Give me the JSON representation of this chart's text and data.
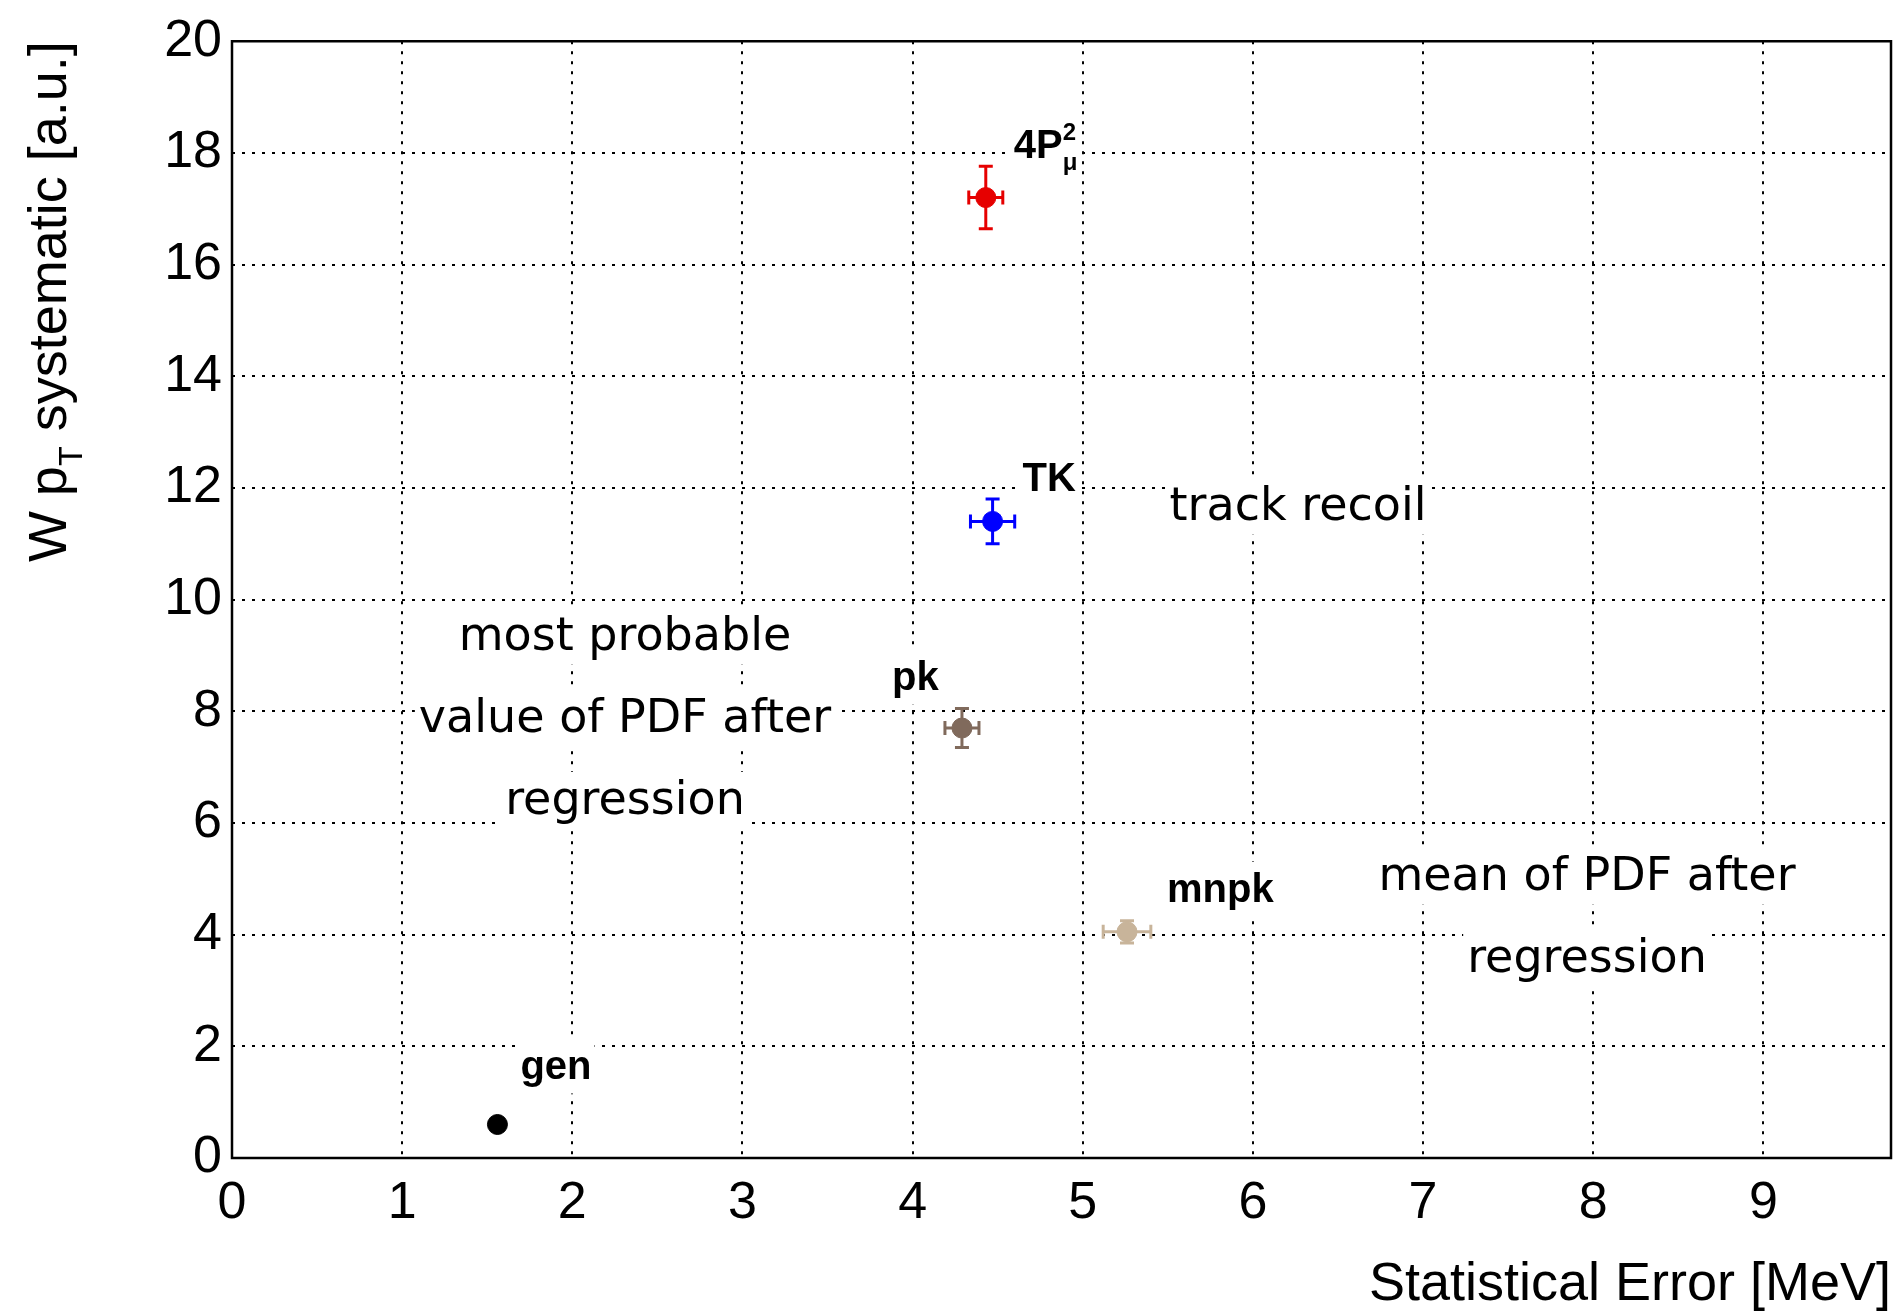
{
  "chart_data": {
    "type": "scatter",
    "xlabel": "Statistical Error [MeV]",
    "ylabel": "W p$_{T}$ systematic [a.u.]",
    "xlim": [
      0,
      9.75
    ],
    "xticks": [
      0,
      1,
      2,
      3,
      4,
      5,
      6,
      7,
      8,
      9
    ],
    "ylim": [
      0,
      20
    ],
    "yticks": [
      0,
      2,
      4,
      6,
      8,
      10,
      12,
      14,
      16,
      18,
      20
    ],
    "grid": true,
    "marker": "circle",
    "annotations": [
      "track recoil",
      "most probable value of PDF after regression",
      "mean of PDF after regression"
    ],
    "series": [
      {
        "name": "gen",
        "color": "#000000",
        "x": [
          1.56
        ],
        "values": [
          0.6
        ]
      },
      {
        "name": "pk",
        "color": "#806a5c",
        "x": [
          4.29
        ],
        "values": [
          7.7
        ],
        "errors": [
          0.35
        ],
        "xerrors": [
          0.1
        ]
      },
      {
        "name": "mnpk",
        "color": "#c8b49a",
        "x": [
          5.26
        ],
        "values": [
          4.05
        ],
        "errors": [
          0.2
        ],
        "xerrors": [
          0.14
        ]
      },
      {
        "name": "TK",
        "color": "#0000ff",
        "x": [
          4.47
        ],
        "values": [
          11.4
        ],
        "errors": [
          0.4
        ],
        "xerrors": [
          0.13
        ]
      },
      {
        "name": "4P$_{μ}$$^{2}$",
        "color": "#e60000",
        "x": [
          4.43
        ],
        "values": [
          17.2
        ],
        "errors": [
          0.56
        ],
        "xerrors": [
          0.1
        ]
      }
    ]
  }
}
